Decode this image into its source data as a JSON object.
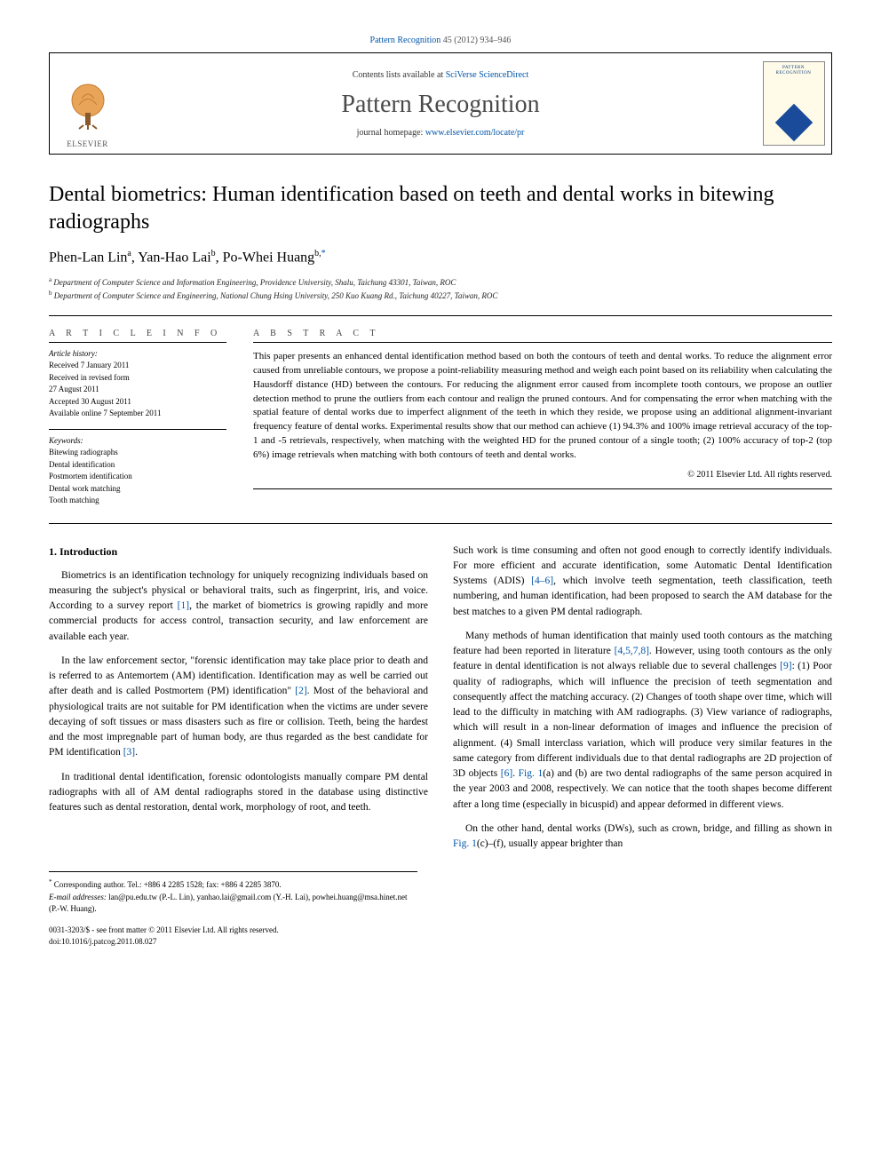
{
  "citation": {
    "journal_link": "Pattern Recognition",
    "text_suffix": " 45 (2012) 934–946"
  },
  "masthead": {
    "contents_prefix": "Contents lists available at ",
    "contents_link": "SciVerse ScienceDirect",
    "journal": "Pattern Recognition",
    "homepage_prefix": "journal homepage: ",
    "homepage_link": "www.elsevier.com/locate/pr",
    "publisher_logo_text": "ELSEVIER",
    "cover_label": "PATTERN RECOGNITION"
  },
  "article": {
    "title": "Dental biometrics: Human identification based on teeth and dental works in bitewing radiographs",
    "authors_html_parts": {
      "a1": "Phen-Lan Lin",
      "a1_sup": "a",
      "sep1": ", ",
      "a2": "Yan-Hao Lai",
      "a2_sup": "b",
      "sep2": ", ",
      "a3": "Po-Whei Huang",
      "a3_sup": "b,",
      "corr": "*"
    },
    "affiliations": {
      "a": "Department of Computer Science and Information Engineering, Providence University, Shalu, Taichung 43301, Taiwan, ROC",
      "b": "Department of Computer Science and Engineering, National Chung Hsing University, 250 Kuo Kuang Rd., Taichung 40227, Taiwan, ROC"
    }
  },
  "info": {
    "heading": "A R T I C L E  I N F O",
    "history_label": "Article history:",
    "history": {
      "received": "Received 7 January 2011",
      "revised_l1": "Received in revised form",
      "revised_l2": "27 August 2011",
      "accepted": "Accepted 30 August 2011",
      "online": "Available online 7 September 2011"
    },
    "keywords_label": "Keywords:",
    "keywords": [
      "Bitewing radiographs",
      "Dental identification",
      "Postmortem identification",
      "Dental work matching",
      "Tooth matching"
    ]
  },
  "abstract": {
    "heading": "A B S T R A C T",
    "text": "This paper presents an enhanced dental identification method based on both the contours of teeth and dental works. To reduce the alignment error caused from unreliable contours, we propose a point-reliability measuring method and weigh each point based on its reliability when calculating the Hausdorff distance (HD) between the contours. For reducing the alignment error caused from incomplete tooth contours, we propose an outlier detection method to prune the outliers from each contour and realign the pruned contours. And for compensating the error when matching with the spatial feature of dental works due to imperfect alignment of the teeth in which they reside, we propose using an additional alignment-invariant frequency feature of dental works. Experimental results show that our method can achieve (1) 94.3% and 100% image retrieval accuracy of the top-1 and -5 retrievals, respectively, when matching with the weighted HD for the pruned contour of a single tooth; (2) 100% accuracy of top-2 (top 6%) image retrievals when matching with both contours of teeth and dental works.",
    "copyright": "© 2011 Elsevier Ltd. All rights reserved."
  },
  "body": {
    "s1_heading": "1.  Introduction",
    "p1": "Biometrics is an identification technology for uniquely recognizing individuals based on measuring the subject's physical or behavioral traits, such as fingerprint, iris, and voice. According to a survey report [1], the market of biometrics is growing rapidly and more commercial products for access control, transaction security, and law enforcement are available each year.",
    "p2": "In the law enforcement sector, \"forensic identification may take place prior to death and is referred to as Antemortem (AM) identification. Identification may as well be carried out after death and is called Postmortem (PM) identification\" [2]. Most of the behavioral and physiological traits are not suitable for PM identification when the victims are under severe decaying of soft tissues or mass disasters such as fire or collision. Teeth, being the hardest and the most impregnable part of human body, are thus regarded as the best candidate for PM identification [3].",
    "p3": "In traditional dental identification, forensic odontologists manually compare PM dental radiographs with all of AM dental radiographs stored in the database using distinctive features such as dental restoration, dental work, morphology of root, and teeth.",
    "p4": "Such work is time consuming and often not good enough to correctly identify individuals. For more efficient and accurate identification, some Automatic Dental Identification Systems (ADIS) [4–6], which involve teeth segmentation, teeth classification, teeth numbering, and human identification, had been proposed to search the AM database for the best matches to a given PM dental radiograph.",
    "p5": "Many methods of human identification that mainly used tooth contours as the matching feature had been reported in literature [4,5,7,8]. However, using tooth contours as the only feature in dental identification is not always reliable due to several challenges [9]: (1) Poor quality of radiographs, which will influence the precision of teeth segmentation and consequently affect the matching accuracy. (2) Changes of tooth shape over time, which will lead to the difficulty in matching with AM radiographs. (3) View variance of radiographs, which will result in a non-linear deformation of images and influence the precision of alignment. (4) Small interclass variation, which will produce very similar features in the same category from different individuals due to that dental radiographs are 2D projection of 3D objects [6]. Fig. 1(a) and (b) are two dental radiographs of the same person acquired in the year 2003 and 2008, respectively. We can notice that the tooth shapes become different after a long time (especially in bicuspid) and appear deformed in different views.",
    "p6": "On the other hand, dental works (DWs), such as crown, bridge, and filling as shown in Fig. 1(c)–(f), usually appear brighter than"
  },
  "footnotes": {
    "corr": "Corresponding author. Tel.: +886 4 2285 1528; fax: +886 4 2285 3870.",
    "email_label": "E-mail addresses:",
    "emails": " lan@pu.edu.tw (P.-L. Lin), yanhao.lai@gmail.com (Y.-H. Lai), powhei.huang@msa.hinet.net (P.-W. Huang)."
  },
  "frontmatter": {
    "line1": "0031-3203/$ - see front matter © 2011 Elsevier Ltd. All rights reserved.",
    "line2": "doi:10.1016/j.patcog.2011.08.027"
  },
  "refs": {
    "r1": "[1]",
    "r2": "[2]",
    "r3": "[3]",
    "r4_6": "[4–6]",
    "r4578": "[4,5,7,8]",
    "r9": "[9]",
    "r6": "[6]",
    "fig1ab": "Fig. 1",
    "fig1cf": "Fig. 1"
  }
}
